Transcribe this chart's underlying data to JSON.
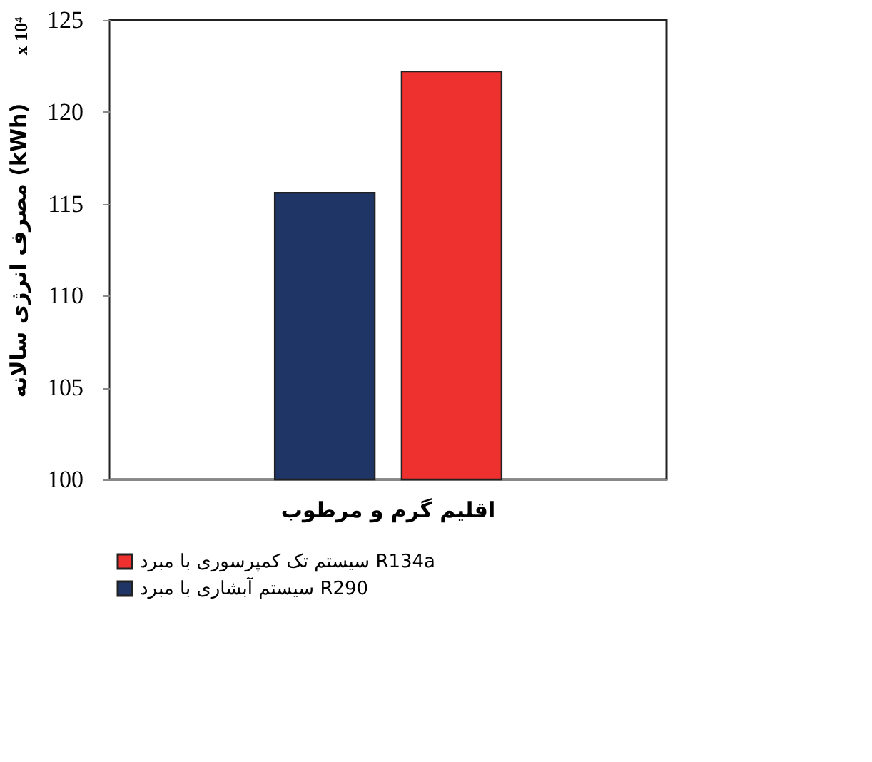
{
  "chart_data": {
    "type": "bar",
    "categories": [
      "اقلیم گرم و مرطوب"
    ],
    "series": [
      {
        "name": "سیستم آبشاری با مبرد R290",
        "color": "#1f3566",
        "values": [
          115.6
        ]
      },
      {
        "name": "سیستم تک کمپرسوری با مبرد R134a",
        "color": "#ee302e",
        "values": [
          122.2
        ]
      }
    ],
    "ylabel": "مصرف انرژی سالانه (kWh)",
    "annotations": [
      "x 10⁴"
    ],
    "ylim": [
      100,
      125
    ],
    "yticks": [
      100,
      105,
      110,
      115,
      120,
      125
    ],
    "grid": false,
    "legend": "bottom"
  }
}
